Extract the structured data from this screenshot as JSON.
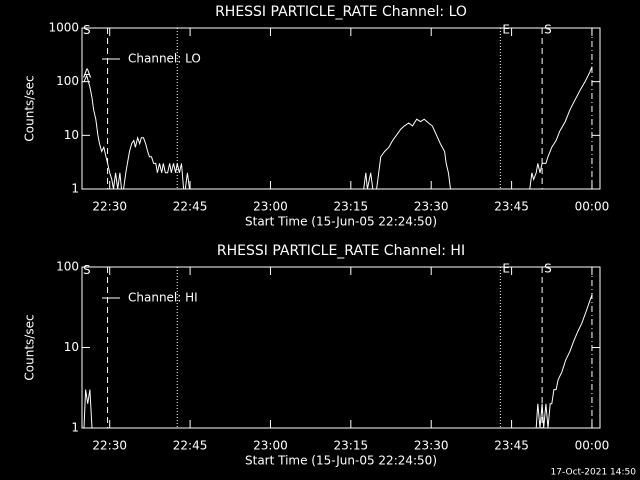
{
  "footer": "17-Oct-2021 14:50",
  "chart_data": [
    {
      "type": "line",
      "title": "RHESSI PARTICLE_RATE Channel: LO",
      "xlabel": "Start Time (15-Jun-05 22:24:50)",
      "ylabel": "Counts/sec",
      "log_y": true,
      "legend": "upper left",
      "xlim": [
        24.83,
        121.5
      ],
      "ylim": [
        1,
        1000
      ],
      "yticks": [
        1,
        10,
        100,
        1000
      ],
      "xticks": [
        {
          "value": 30,
          "label": "22:30"
        },
        {
          "value": 45,
          "label": "22:45"
        },
        {
          "value": 60,
          "label": "23:00"
        },
        {
          "value": 75,
          "label": "23:15"
        },
        {
          "value": 90,
          "label": "23:30"
        },
        {
          "value": 105,
          "label": "23:45"
        },
        {
          "value": 120,
          "label": "00:00"
        }
      ],
      "vlines": [
        {
          "x": 29.6,
          "style": "dashed"
        },
        {
          "x": 42.6,
          "style": "dotted"
        },
        {
          "x": 102.9,
          "style": "dotted",
          "label": "E"
        },
        {
          "x": 110.7,
          "style": "dashed",
          "label": "S"
        },
        {
          "x": 120.0,
          "style": "dashdot"
        }
      ],
      "annotations": [
        {
          "text": "S",
          "x": 25.2,
          "y": 900
        },
        {
          "text": "A",
          "x": 25.2,
          "y": 140
        }
      ],
      "series": [
        {
          "name": "Channel: LO",
          "color": "#ffffff",
          "x": [
            25.2,
            25.7,
            26.3,
            26.7,
            27.0,
            27.4,
            27.8,
            28.1,
            28.5,
            28.9,
            29.3,
            29.6,
            30.0,
            30.4,
            30.7,
            31.1,
            31.5,
            31.9,
            32.2,
            32.6,
            33.0,
            33.3,
            33.7,
            34.1,
            34.5,
            34.8,
            35.2,
            35.6,
            35.9,
            36.3,
            36.7,
            37.1,
            37.4,
            37.8,
            38.2,
            38.6,
            38.9,
            39.3,
            39.7,
            40.0,
            40.4,
            40.8,
            41.2,
            41.5,
            41.9,
            42.3,
            42.6,
            43.0,
            43.4,
            43.8,
            44.1,
            44.5,
            44.9,
            77.4,
            77.8,
            78.1,
            78.7,
            79.1,
            79.8,
            80.2,
            80.6,
            81.3,
            82.1,
            82.8,
            83.5,
            84.3,
            85.0,
            85.8,
            86.5,
            87.3,
            88.0,
            88.7,
            89.5,
            90.2,
            91.0,
            91.7,
            92.5,
            92.8,
            93.2,
            93.6,
            108.4,
            108.8,
            109.1,
            109.6,
            109.9,
            110.3,
            110.7,
            111.4,
            111.8,
            112.5,
            113.3,
            114.0,
            115.0,
            115.9,
            116.8,
            117.8,
            118.7,
            119.6,
            120.0
          ],
          "values": [
            100,
            130,
            80,
            50,
            30,
            20,
            10,
            7,
            5,
            6,
            4,
            3,
            2,
            1.5,
            1,
            2,
            1,
            2,
            1,
            1,
            2,
            3,
            5,
            7,
            8,
            6,
            9,
            7,
            9,
            9,
            7,
            5,
            4,
            4,
            3,
            3,
            2,
            3,
            2,
            3,
            2,
            2,
            3,
            2,
            3,
            2,
            3,
            2,
            3,
            1,
            1,
            2,
            1,
            1,
            2,
            1,
            2,
            1,
            1,
            2,
            4,
            5,
            6,
            8,
            10,
            13,
            15,
            17,
            15,
            20,
            18,
            20,
            17,
            15,
            10,
            7,
            5,
            3,
            2,
            1,
            1,
            2,
            1.5,
            2,
            3,
            2,
            3,
            3,
            4,
            6,
            8,
            12,
            18,
            30,
            45,
            70,
            100,
            150,
            190
          ]
        }
      ]
    },
    {
      "type": "line",
      "title": "RHESSI PARTICLE_RATE Channel: HI",
      "xlabel": "Start Time (15-Jun-05 22:24:50)",
      "ylabel": "Counts/sec",
      "log_y": true,
      "legend": "upper left",
      "xlim": [
        24.83,
        121.5
      ],
      "ylim": [
        1,
        100
      ],
      "yticks": [
        1,
        10,
        100
      ],
      "xticks": [
        {
          "value": 30,
          "label": "22:30"
        },
        {
          "value": 45,
          "label": "22:45"
        },
        {
          "value": 60,
          "label": "23:00"
        },
        {
          "value": 75,
          "label": "23:15"
        },
        {
          "value": 90,
          "label": "23:30"
        },
        {
          "value": 105,
          "label": "23:45"
        },
        {
          "value": 120,
          "label": "00:00"
        }
      ],
      "vlines": [
        {
          "x": 29.6,
          "style": "dashed"
        },
        {
          "x": 42.6,
          "style": "dotted"
        },
        {
          "x": 102.9,
          "style": "dotted",
          "label": "E"
        },
        {
          "x": 110.7,
          "style": "dashed",
          "label": "S"
        },
        {
          "x": 120.0,
          "style": "dashdot"
        }
      ],
      "annotations": [
        {
          "text": "S",
          "x": 25.2,
          "y": 90
        }
      ],
      "series": [
        {
          "name": "Channel: HI",
          "color": "#ffffff",
          "x": [
            25.2,
            25.5,
            25.9,
            26.3,
            26.7,
            109.6,
            109.9,
            110.3,
            110.7,
            111.0,
            111.4,
            111.8,
            112.2,
            112.5,
            112.9,
            113.3,
            113.7,
            114.4,
            115.1,
            115.9,
            116.6,
            117.4,
            118.1,
            118.9,
            119.6,
            120.0
          ],
          "values": [
            1,
            3,
            2,
            3,
            1,
            1,
            2,
            1,
            2,
            1,
            2,
            1,
            2,
            2,
            3,
            3,
            4,
            5,
            7,
            9,
            12,
            16,
            20,
            28,
            38,
            45
          ]
        }
      ]
    }
  ]
}
